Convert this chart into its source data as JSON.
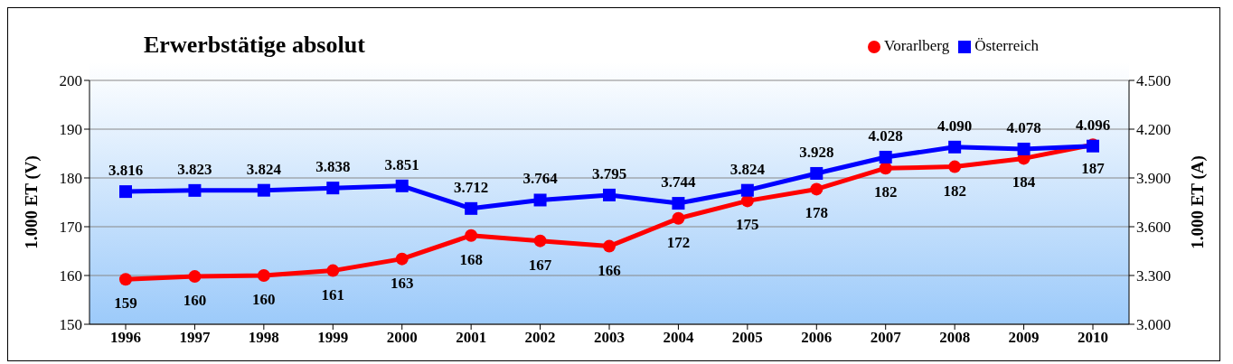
{
  "chart_data": {
    "type": "line",
    "title": "Erwerbstätige absolut",
    "categories": [
      "1996",
      "1997",
      "1998",
      "1999",
      "2000",
      "2001",
      "2002",
      "2003",
      "2004",
      "2005",
      "2006",
      "2007",
      "2008",
      "2009",
      "2010"
    ],
    "series": [
      {
        "name": "Vorarlberg",
        "color": "#ff0000",
        "marker": "circle",
        "axis": "y",
        "values": [
          159.2,
          159.8,
          160.0,
          161.0,
          163.4,
          168.2,
          167.1,
          166.0,
          171.7,
          175.3,
          177.7,
          182.0,
          182.3,
          184.0,
          186.8
        ],
        "value_labels": [
          "159",
          "160",
          "160",
          "161",
          "163",
          "168",
          "167",
          "166",
          "172",
          "175",
          "178",
          "182",
          "182",
          "184",
          "187"
        ]
      },
      {
        "name": "Österreich",
        "color": "#0000ff",
        "marker": "square",
        "axis": "y2",
        "values": [
          3816,
          3823,
          3824,
          3838,
          3851,
          3712,
          3764,
          3795,
          3744,
          3824,
          3928,
          4028,
          4090,
          4078,
          4096
        ],
        "value_labels": [
          "3.816",
          "3.823",
          "3.824",
          "3.838",
          "3.851",
          "3.712",
          "3.764",
          "3.795",
          "3.744",
          "3.824",
          "3.928",
          "4.028",
          "4.090",
          "4.078",
          "4.096"
        ]
      }
    ],
    "ylabel": "1.000 ET (V)",
    "y2label": "1.000 ET (A)",
    "ylim": [
      150,
      200
    ],
    "yticks": [
      150,
      160,
      170,
      180,
      190,
      200
    ],
    "y2lim": [
      3000,
      4500
    ],
    "y2ticks": [
      {
        "value": 3000,
        "label": "3.000"
      },
      {
        "value": 3300,
        "label": "3.300"
      },
      {
        "value": 3600,
        "label": "3.600"
      },
      {
        "value": 3900,
        "label": "3.900"
      },
      {
        "value": 4200,
        "label": "4.200"
      },
      {
        "value": 4500,
        "label": "4.500"
      }
    ],
    "grid": "y",
    "legend": "top right",
    "line_style": "solid"
  }
}
